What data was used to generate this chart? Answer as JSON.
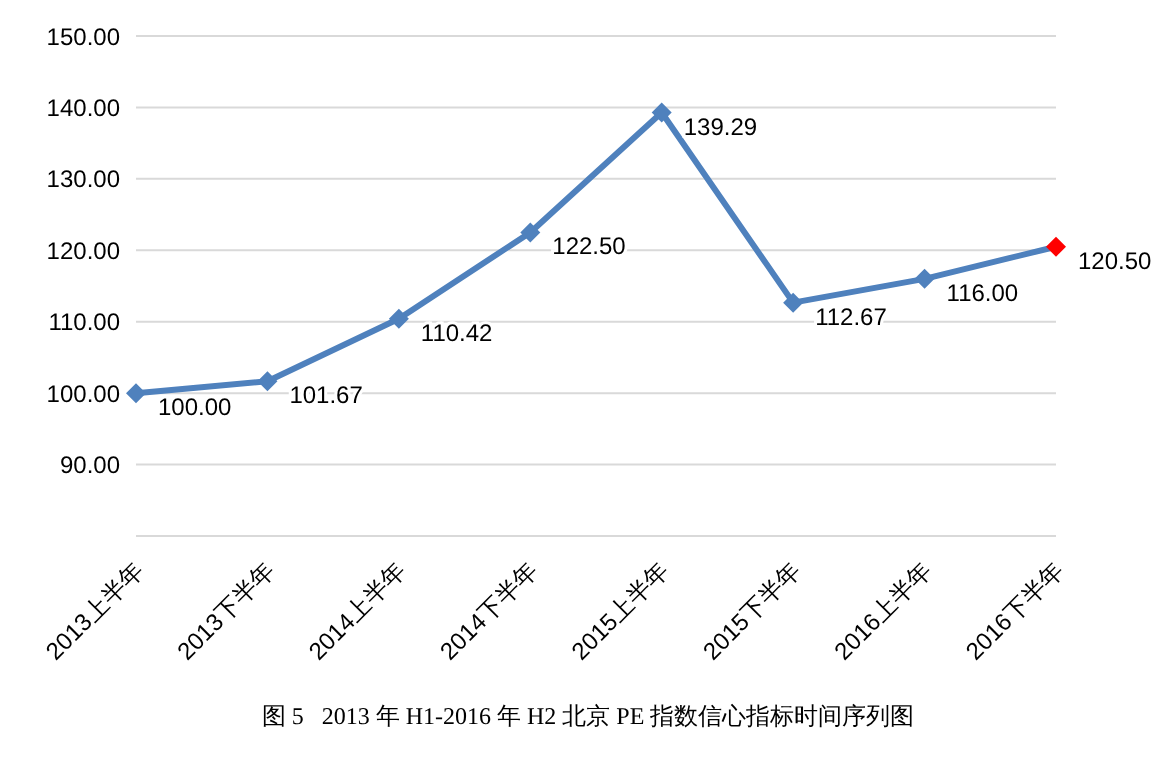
{
  "chart_data": {
    "type": "line",
    "categories": [
      "2013上半年",
      "2013下半年",
      "2014上半年",
      "2014下半年",
      "2015上半年",
      "2015下半年",
      "2016上半年",
      "2016下半年"
    ],
    "series": [
      {
        "color": "#4f81bd",
        "colors": [
          "#4f81bd",
          "#4f81bd",
          "#4f81bd",
          "#4f81bd",
          "#4f81bd",
          "#4f81bd",
          "#4f81bd",
          "#ff0000"
        ],
        "values": [
          100.0,
          101.67,
          110.42,
          122.5,
          139.29,
          112.67,
          116.0,
          120.5
        ],
        "value_labels": [
          "100.00",
          "101.67",
          "110.42",
          "122.50",
          "139.29",
          "112.67",
          "116.00",
          "120.50"
        ]
      }
    ],
    "ylim": [
      80,
      150
    ],
    "yticks": [
      {
        "value": 80,
        "label": null
      },
      {
        "value": 90,
        "label": "90.00"
      },
      {
        "value": 100,
        "label": "100.00"
      },
      {
        "value": 110,
        "label": "110.00"
      },
      {
        "value": 120,
        "label": "120.00"
      },
      {
        "value": 130,
        "label": "130.00"
      },
      {
        "value": 140,
        "label": "140.00"
      },
      {
        "value": 150,
        "label": "150.00"
      }
    ],
    "grid": "y",
    "legend": false,
    "marker": "diamond",
    "line_style": "solid",
    "annotations": [
      "图 5   2013 年 H1-2016 年 H2 北京 PE 指数信心指标时间序列图"
    ]
  }
}
